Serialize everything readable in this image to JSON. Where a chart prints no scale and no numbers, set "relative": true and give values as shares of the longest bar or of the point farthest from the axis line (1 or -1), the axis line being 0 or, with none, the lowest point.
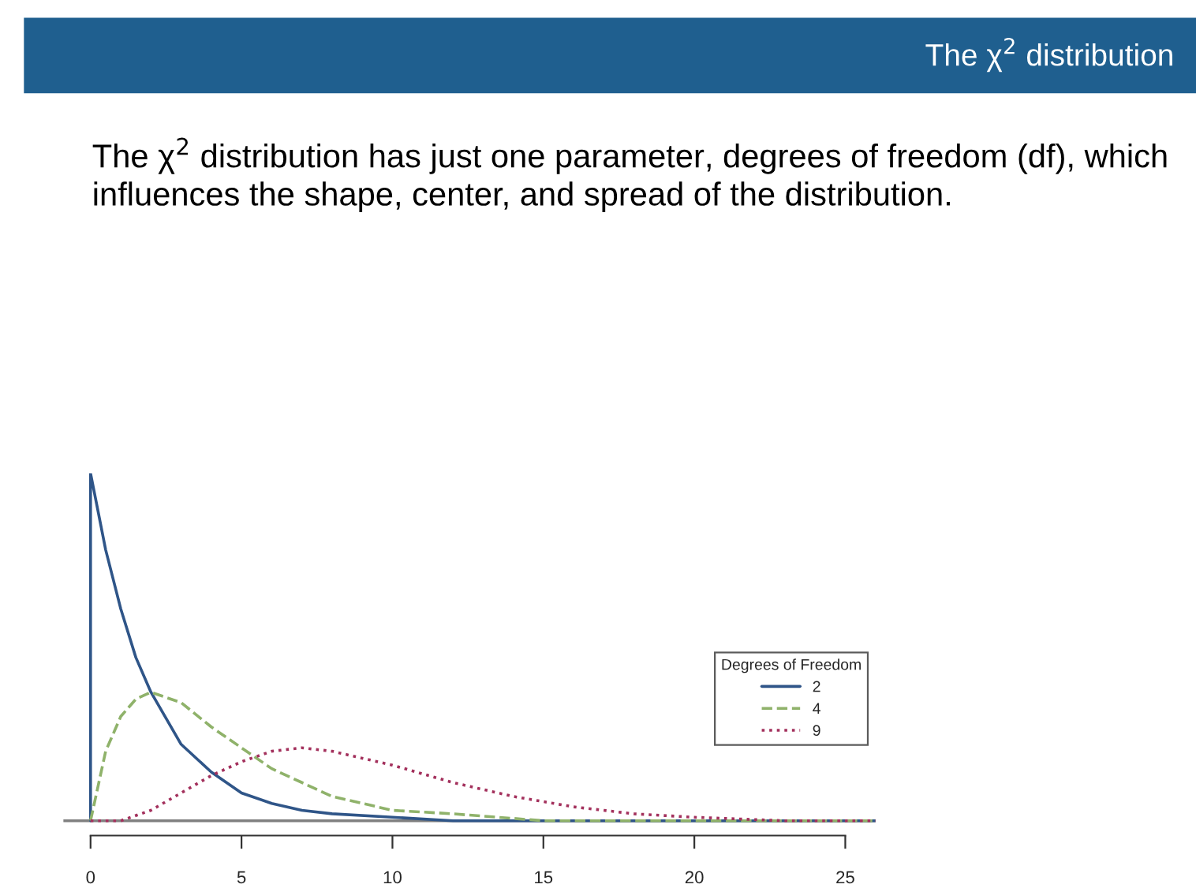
{
  "chart_data": {
    "type": "line",
    "title": "The χ$^{2}$ distribution",
    "subtitle": "The χ$^{2}$ distribution has just one parameter, degrees of freedom (df), which influences the shape, center, and spread of the distribution.",
    "relative": true,
    "legend": "right",
    "legend_title": "Degrees of Freedom",
    "grid": false,
    "xlim": [
      -0.9,
      26
    ],
    "xticks": [
      0,
      5,
      10,
      15,
      20,
      25
    ],
    "ref_lines": [
      {
        "axis": "y",
        "value": 0,
        "color": "#808080"
      }
    ],
    "series": [
      {
        "name": "2",
        "color": "#2f5588",
        "line_style": "solid",
        "x": [
          0,
          0,
          0.5,
          1,
          1.5,
          2,
          3,
          4,
          5,
          6,
          7,
          8,
          10,
          12,
          15,
          20,
          26
        ],
        "values": [
          0,
          1,
          0.78,
          0.61,
          0.47,
          0.37,
          0.22,
          0.14,
          0.08,
          0.05,
          0.03,
          0.02,
          0.01,
          0,
          0,
          0,
          0
        ]
      },
      {
        "name": "4",
        "color": "#8fb26a",
        "line_style": "dashed",
        "x": [
          0,
          0.5,
          1,
          1.5,
          2,
          3,
          4,
          5,
          6,
          7,
          8,
          10,
          12,
          15,
          20,
          26
        ],
        "values": [
          0,
          0.2,
          0.3,
          0.35,
          0.37,
          0.34,
          0.27,
          0.21,
          0.15,
          0.11,
          0.07,
          0.03,
          0.02,
          0,
          0,
          0
        ]
      },
      {
        "name": "9",
        "color": "#a3305c",
        "line_style": "dotted",
        "x": [
          0,
          1,
          2,
          3,
          4,
          5,
          6,
          7,
          8,
          9,
          10,
          12,
          14,
          16,
          18,
          20,
          23,
          26
        ],
        "values": [
          0,
          0,
          0.03,
          0.08,
          0.13,
          0.17,
          0.2,
          0.21,
          0.2,
          0.18,
          0.16,
          0.11,
          0.07,
          0.04,
          0.02,
          0.01,
          0,
          0
        ]
      }
    ]
  }
}
